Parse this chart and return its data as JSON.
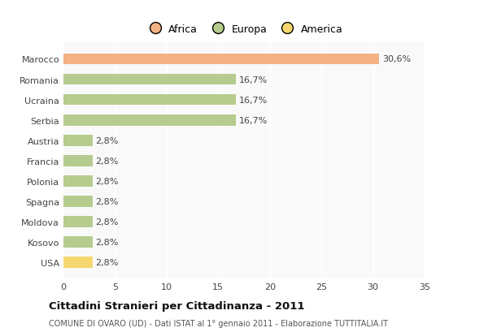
{
  "categories": [
    "USA",
    "Kosovo",
    "Moldova",
    "Spagna",
    "Polonia",
    "Francia",
    "Austria",
    "Serbia",
    "Ucraina",
    "Romania",
    "Marocco"
  ],
  "values": [
    2.8,
    2.8,
    2.8,
    2.8,
    2.8,
    2.8,
    2.8,
    16.7,
    16.7,
    16.7,
    30.6
  ],
  "colors": [
    "#f5d76e",
    "#b5cc8e",
    "#b5cc8e",
    "#b5cc8e",
    "#b5cc8e",
    "#b5cc8e",
    "#b5cc8e",
    "#b5cc8e",
    "#b5cc8e",
    "#b5cc8e",
    "#f4b183"
  ],
  "bar_labels": [
    "2,8%",
    "2,8%",
    "2,8%",
    "2,8%",
    "2,8%",
    "2,8%",
    "2,8%",
    "16,7%",
    "16,7%",
    "16,7%",
    "30,6%"
  ],
  "xlim": [
    0,
    35
  ],
  "xticks": [
    0,
    5,
    10,
    15,
    20,
    25,
    30,
    35
  ],
  "legend_labels": [
    "Africa",
    "Europa",
    "America"
  ],
  "legend_colors": [
    "#f4b183",
    "#b5cc8e",
    "#f5d76e"
  ],
  "title": "Cittadini Stranieri per Cittadinanza - 2011",
  "subtitle": "COMUNE DI OVARO (UD) - Dati ISTAT al 1° gennaio 2011 - Elaborazione TUTTITALIA.IT",
  "background_color": "#ffffff",
  "plot_bg_color": "#f9f9f9",
  "grid_color": "#ffffff",
  "bar_height": 0.55,
  "label_fontsize": 8,
  "tick_fontsize": 8,
  "ytick_fontsize": 8
}
